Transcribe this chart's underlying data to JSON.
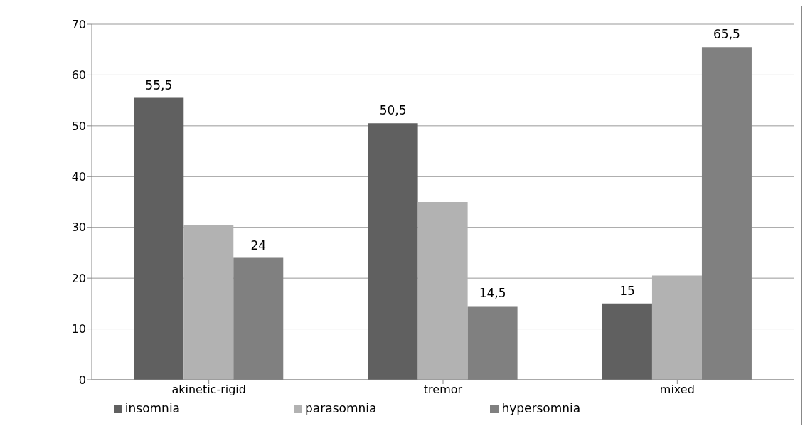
{
  "chart_data": {
    "type": "bar",
    "categories": [
      "akinetic-rigid",
      "tremor",
      "mixed"
    ],
    "series": [
      {
        "name": "insomnia",
        "color": "#606060",
        "values": [
          55.5,
          50.5,
          15
        ],
        "value_labels": [
          "55,5",
          "50,5",
          "15"
        ]
      },
      {
        "name": "parasomnia",
        "color": "#b2b2b2",
        "values": [
          30.5,
          35,
          20.5
        ]
      },
      {
        "name": "hypersomnia",
        "color": "#808080",
        "values": [
          24,
          14.5,
          65.5
        ],
        "value_labels": [
          "24",
          "14,5",
          "65,5"
        ]
      }
    ],
    "ylim": [
      0,
      70
    ],
    "yticks": [
      0,
      10,
      20,
      30,
      40,
      50,
      60,
      70
    ],
    "grid": "y",
    "legend": "bottom"
  }
}
